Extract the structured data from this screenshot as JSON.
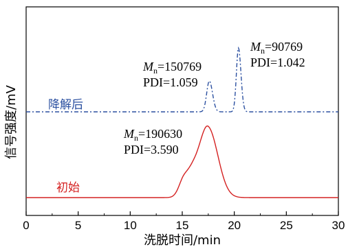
{
  "chart_data": {
    "type": "line",
    "xlabel": "洗脱时间/min",
    "ylabel": "信号强度/mV",
    "xlim": [
      0,
      30
    ],
    "x_ticks": [
      "0",
      "5",
      "10",
      "15",
      "20",
      "25",
      "30"
    ],
    "grid": false,
    "series": [
      {
        "name": "降解后",
        "color": "#2a4fa0",
        "line_style": "dash-dot",
        "baseline": 0.0,
        "peaks": [
          {
            "x": 17.6,
            "height": 0.3,
            "width": 0.28
          },
          {
            "x": 20.4,
            "height": 0.62,
            "width": 0.22
          }
        ],
        "annotations": [
          {
            "mn_label": "M",
            "mn_sub": "n",
            "mn_value": "=150769",
            "pdi": "PDI=1.059",
            "x": 17.6
          },
          {
            "mn_label": "M",
            "mn_sub": "n",
            "mn_value": "=90769",
            "pdi": "PDI=1.042",
            "x": 20.4
          }
        ]
      },
      {
        "name": "初始",
        "color": "#d42020",
        "line_style": "solid",
        "baseline": 0.0,
        "peaks": [
          {
            "x": 15.2,
            "height": 0.22,
            "width": 0.55
          },
          {
            "x": 16.2,
            "height": 0.22,
            "width": 0.6
          },
          {
            "x": 17.5,
            "height": 0.78,
            "width": 0.85
          }
        ],
        "annotations": [
          {
            "mn_label": "M",
            "mn_sub": "n",
            "mn_value": "=190630",
            "pdi": "PDI=3.590",
            "x": 17.5
          }
        ]
      }
    ]
  }
}
